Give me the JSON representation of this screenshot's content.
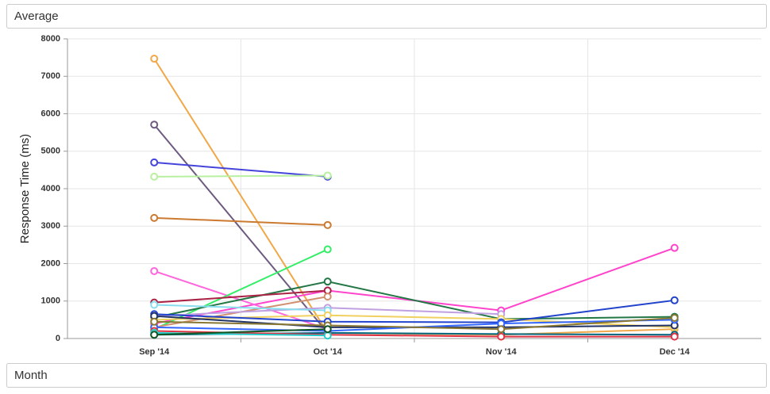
{
  "chart_data": {
    "type": "line",
    "title": "Average",
    "x_label": "Month",
    "y_label": "Response Time (ms)",
    "categories": [
      "Sep '14",
      "Oct '14",
      "Nov '14",
      "Dec '14"
    ],
    "ylim": [
      0,
      8000
    ],
    "yticks": [
      0,
      1000,
      2000,
      3000,
      4000,
      5000,
      6000,
      7000,
      8000
    ],
    "grid": true,
    "series": [
      {
        "color": "#f0a848",
        "values": [
          7470,
          150,
          100,
          250
        ]
      },
      {
        "color": "#6e5a80",
        "values": [
          5710,
          150,
          null,
          null
        ]
      },
      {
        "color": "#4444dd",
        "values": [
          4700,
          4320,
          null,
          null
        ]
      },
      {
        "color": "#b8f0a0",
        "values": [
          4320,
          4350,
          null,
          null
        ]
      },
      {
        "color": "#cc7a30",
        "values": [
          3220,
          3030,
          null,
          null
        ]
      },
      {
        "color": "#ff44cc",
        "values": [
          400,
          1280,
          750,
          2420
        ]
      },
      {
        "color": "#ff66dd",
        "values": [
          1800,
          250,
          null,
          null
        ]
      },
      {
        "color": "#33ee66",
        "values": [
          250,
          2380,
          null,
          null
        ]
      },
      {
        "color": "#227744",
        "values": [
          560,
          1520,
          520,
          580
        ]
      },
      {
        "color": "#aa2244",
        "values": [
          960,
          1280,
          null,
          null
        ]
      },
      {
        "color": "#d09070",
        "values": [
          300,
          1120,
          null,
          null
        ]
      },
      {
        "color": "#c0a0e0",
        "values": [
          600,
          820,
          650,
          null
        ]
      },
      {
        "color": "#88ddee",
        "values": [
          900,
          750,
          null,
          null
        ]
      },
      {
        "color": "#f0d060",
        "values": [
          500,
          620,
          520,
          300
        ]
      },
      {
        "color": "#2244cc",
        "values": [
          650,
          450,
          430,
          1020
        ]
      },
      {
        "color": "#223366",
        "values": [
          600,
          300,
          300,
          350
        ]
      },
      {
        "color": "#006680",
        "values": [
          100,
          150,
          120,
          100
        ]
      },
      {
        "color": "#3366ff",
        "values": [
          300,
          200,
          400,
          500
        ]
      },
      {
        "color": "#dd3344",
        "values": [
          200,
          100,
          50,
          50
        ]
      },
      {
        "color": "#22cccc",
        "values": [
          150,
          80,
          null,
          null
        ]
      },
      {
        "color": "#887733",
        "values": [
          450,
          350,
          250,
          550
        ]
      },
      {
        "color": "#115522",
        "values": [
          100,
          250,
          null,
          null
        ]
      }
    ]
  }
}
